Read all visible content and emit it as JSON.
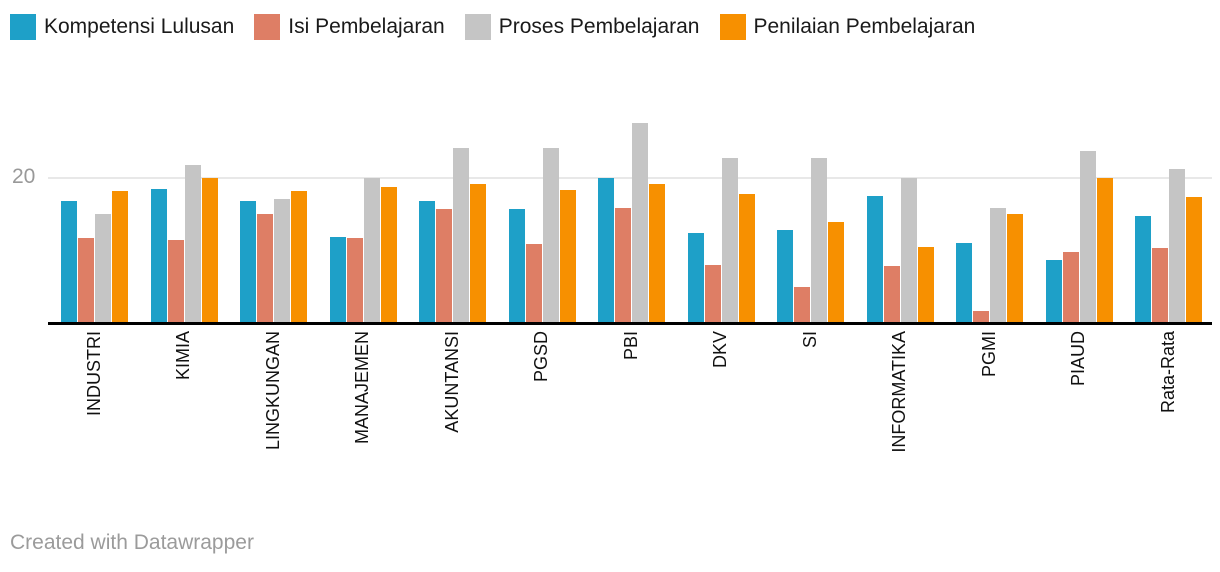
{
  "legend": {
    "items": [
      {
        "label": "Kompetensi Lulusan",
        "color": "#1EA0C8"
      },
      {
        "label": "Isi Pembelajaran",
        "color": "#DE7E65"
      },
      {
        "label": "Proses Pembelajaran",
        "color": "#C5C5C5"
      },
      {
        "label": "Penilaian Pembelajaran",
        "color": "#F79000"
      }
    ]
  },
  "chart_data": {
    "type": "bar",
    "title": "",
    "xlabel": "",
    "ylabel": "",
    "ylim": [
      0,
      28
    ],
    "yticks": [
      20
    ],
    "ytick_label": "20",
    "grid": "single horizontal gridline at y=20",
    "legend_position": "top",
    "categories": [
      "INDUSTRI",
      "KIMIA",
      "LINGKUNGAN",
      "MANAJEMEN",
      "AKUNTANSI",
      "PGSD",
      "PBI",
      "DKV",
      "SI",
      "INFORMATIKA",
      "PGMI",
      "PIAUD",
      "Rata-Rata"
    ],
    "series": [
      {
        "name": "Kompetensi Lulusan",
        "color": "#1EA0C8",
        "values": [
          16.9,
          18.5,
          16.9,
          11.9,
          16.9,
          15.8,
          20.0,
          12.4,
          12.8,
          17.6,
          11.0,
          8.6,
          14.8
        ]
      },
      {
        "name": "Isi Pembelajaran",
        "color": "#DE7E65",
        "values": [
          11.7,
          11.4,
          15.0,
          11.7,
          15.7,
          10.9,
          15.9,
          7.9,
          4.9,
          7.8,
          1.6,
          9.8,
          10.3
        ]
      },
      {
        "name": "Proses Pembelajaran",
        "color": "#C5C5C5",
        "values": [
          15.0,
          21.9,
          17.1,
          20.0,
          24.3,
          24.3,
          27.8,
          22.9,
          22.8,
          20.0,
          15.9,
          23.9,
          21.3
        ]
      },
      {
        "name": "Penilaian Pembelajaran",
        "color": "#F79000",
        "values": [
          18.3,
          20.0,
          18.3,
          18.8,
          19.3,
          18.4,
          19.3,
          17.9,
          13.9,
          10.4,
          15.1,
          20.0,
          17.4
        ]
      }
    ]
  },
  "footer": {
    "credit": "Created with Datawrapper"
  }
}
